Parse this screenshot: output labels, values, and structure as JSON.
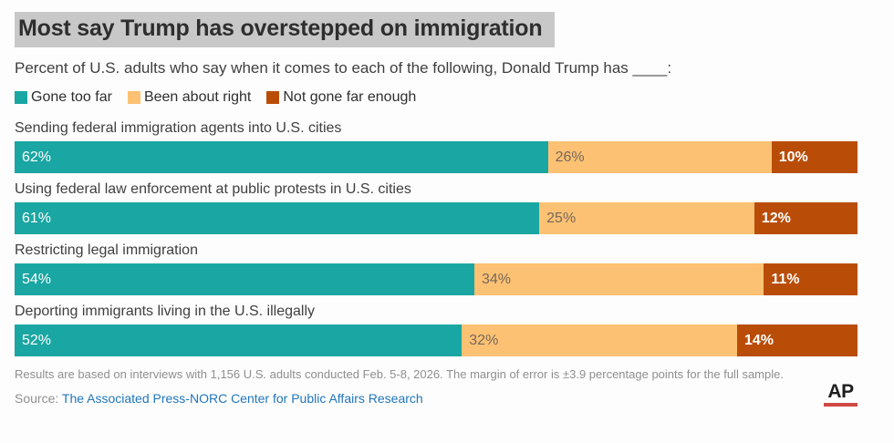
{
  "title": "Most say Trump has overstepped on immigration",
  "subtitle": "Percent of U.S. adults who say when it comes to each of the following, Donald Trump has ____:",
  "colors": {
    "title_highlight": "#c8c8c8",
    "gone_too_far": "#1aa6a2",
    "been_about_right": "#fdc173",
    "not_gone_far_enough": "#b94d08",
    "link_blue": "#2176bd",
    "ap_red": "#cf4a44"
  },
  "legend": {
    "items": [
      {
        "label": "Gone too far",
        "color": "#1aa6a2"
      },
      {
        "label": "Been about right",
        "color": "#fdc173"
      },
      {
        "label": "Not gone far enough",
        "color": "#b94d08"
      }
    ]
  },
  "chart_data": {
    "type": "bar",
    "variant": "horizontal_stacked",
    "unit": "percent",
    "value_suffix": "%",
    "grid": false,
    "legend_position": "top",
    "categories": [
      "Sending federal immigration agents into U.S. cities",
      "Using federal law enforcement at public protests in U.S. cities",
      "Restricting legal immigration",
      "Deporting immigrants living in the U.S. illegally"
    ],
    "series": [
      {
        "name": "Gone too far",
        "color": "#1aa6a2",
        "label_color": "#ffffff",
        "label_bold": false,
        "values": [
          62,
          61,
          54,
          52
        ]
      },
      {
        "name": "Been about right",
        "color": "#fdc173",
        "label_color": "#75685a",
        "label_bold": false,
        "values": [
          26,
          25,
          34,
          32
        ]
      },
      {
        "name": "Not gone far enough",
        "color": "#b94d08",
        "label_color": "#ffffff",
        "label_bold": true,
        "values": [
          10,
          12,
          11,
          14
        ]
      }
    ]
  },
  "footnote": "Results are based on interviews with 1,156 U.S. adults conducted Feb. 5-8, 2026. The margin of error is ±3.9 percentage points for the full sample.",
  "source": {
    "label": "Source:",
    "link_text": "The Associated Press-NORC Center for Public Affairs Research"
  },
  "logo": {
    "text": "AP"
  }
}
